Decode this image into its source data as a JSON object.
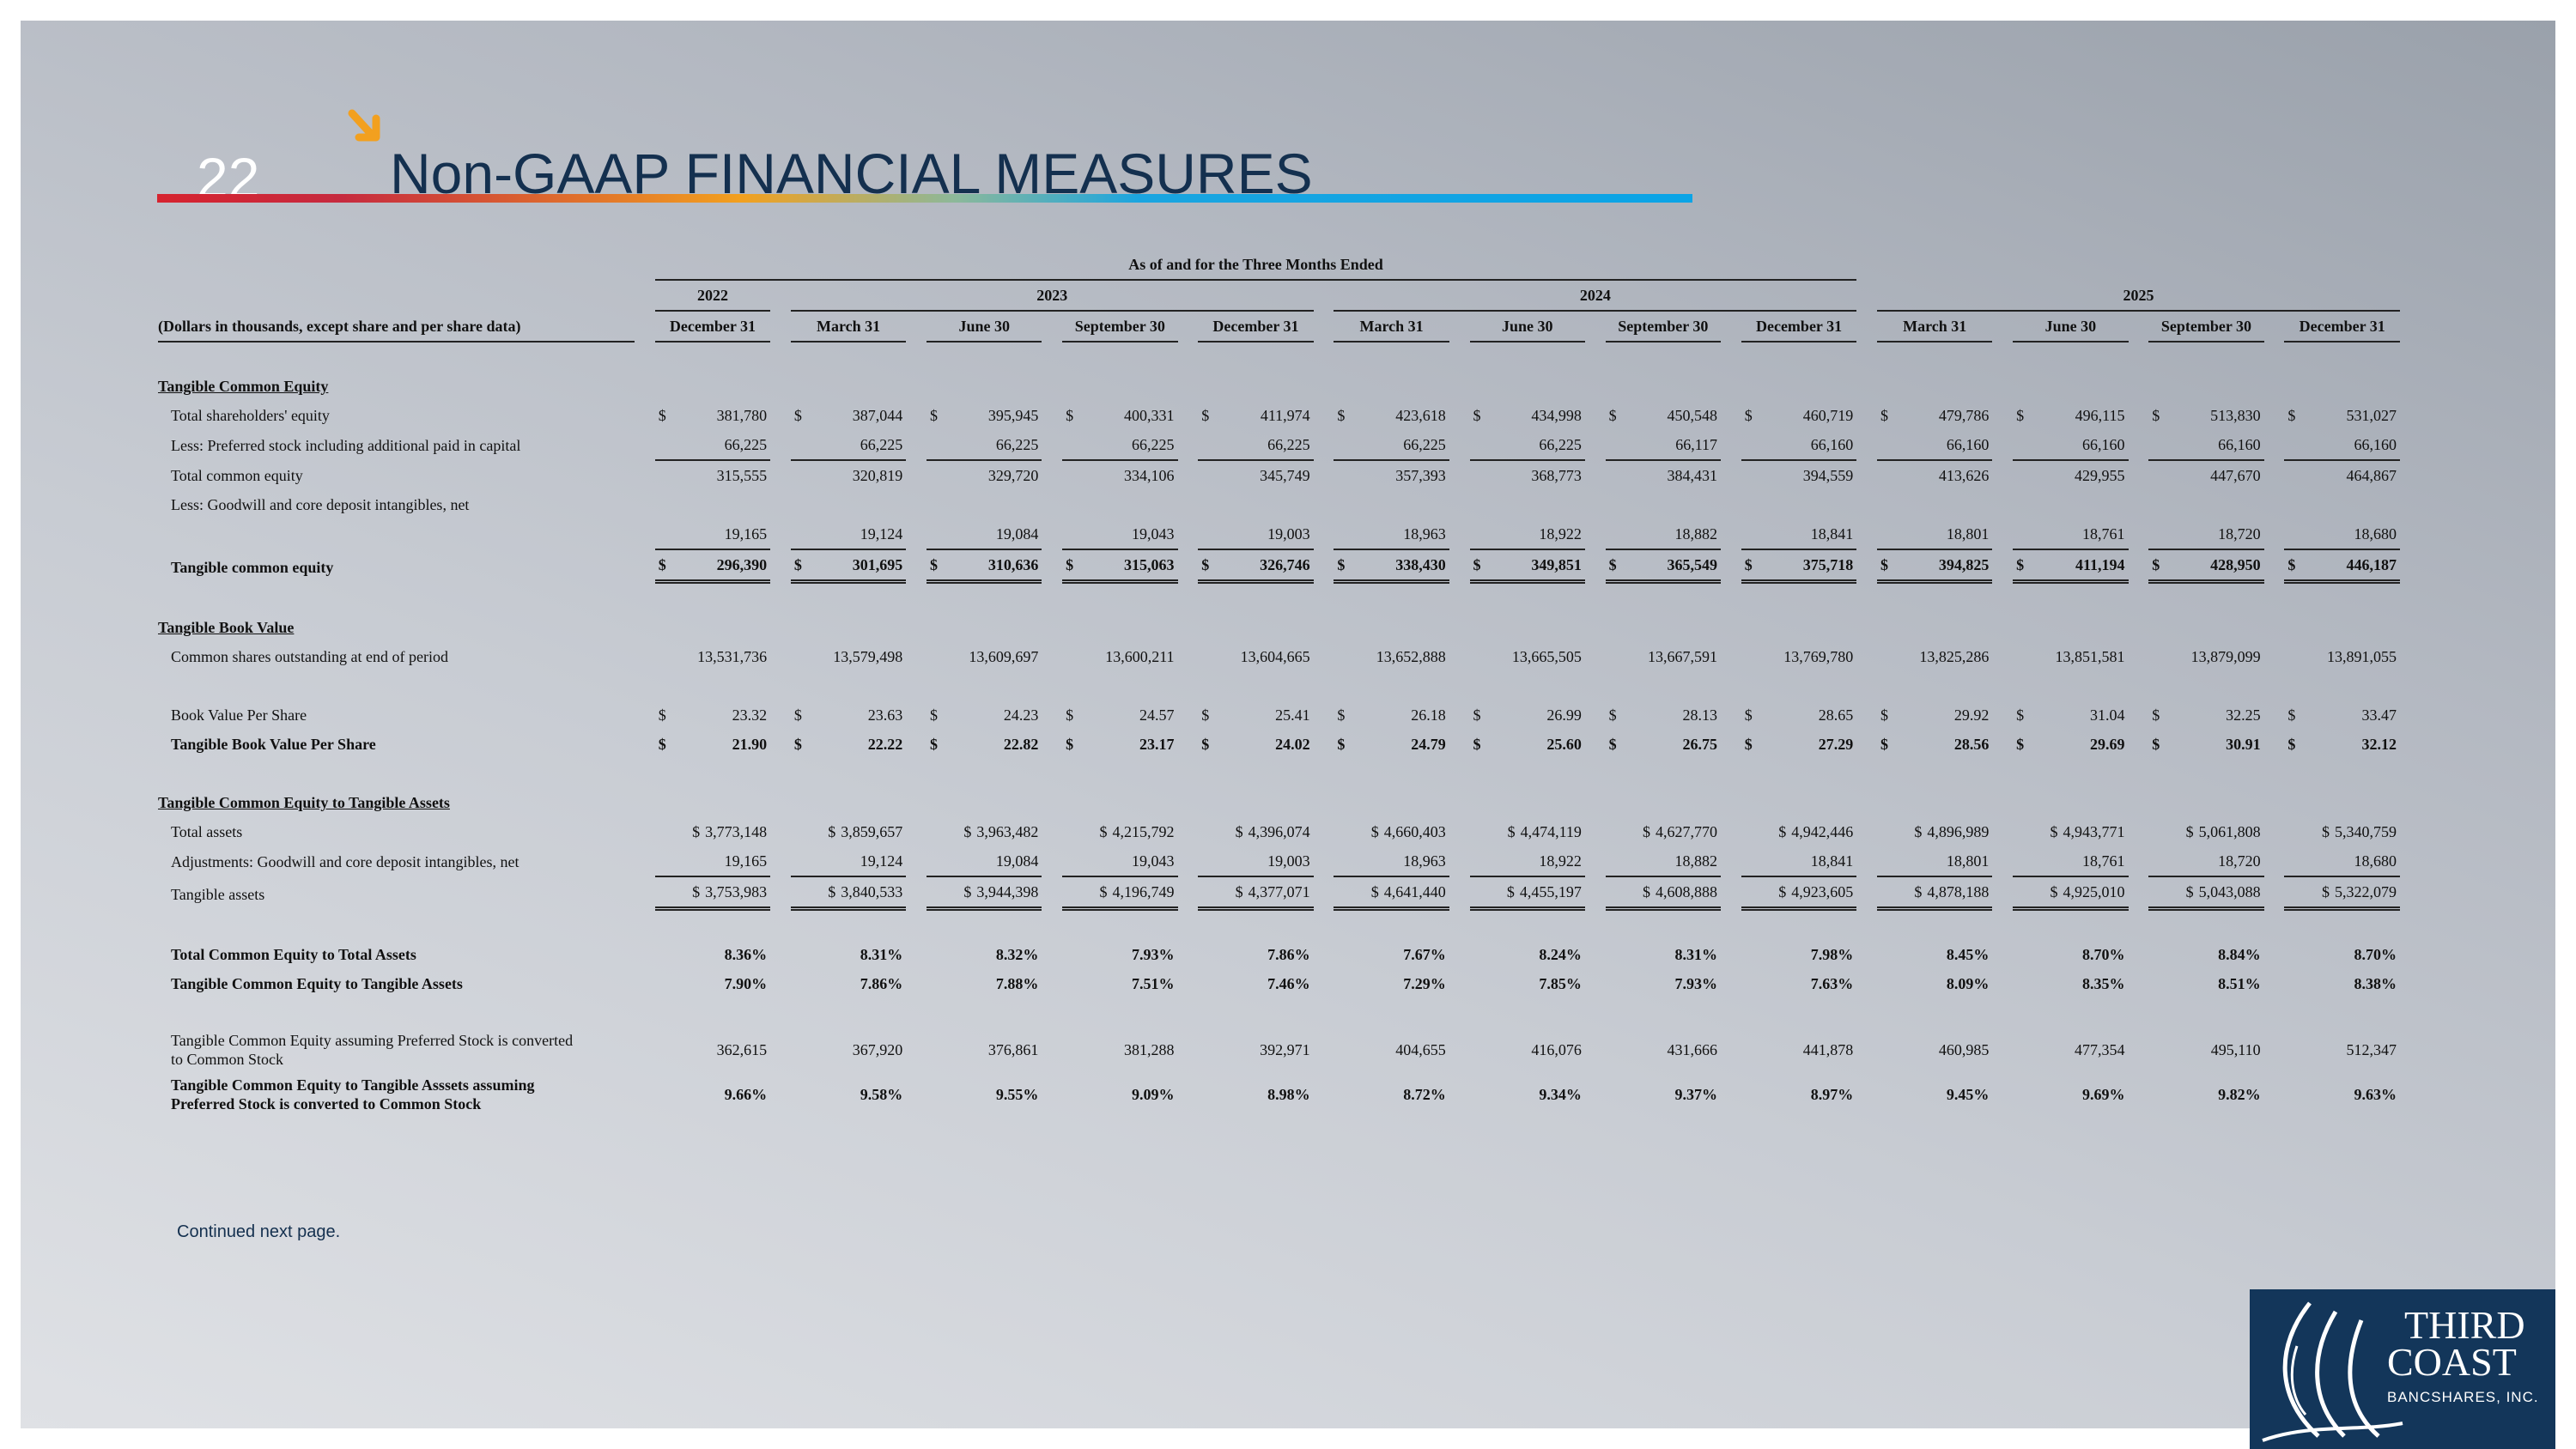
{
  "page_number": "22",
  "title": "Non-GAAP FINANCIAL MEASURES",
  "colors": {
    "title": "#14304f",
    "accent_arrow": "#f2a01f",
    "logo_bg": "#13365a"
  },
  "icons": {
    "arrow": "arrow-down-right-icon",
    "logo": "sailboat-logo-icon"
  },
  "table": {
    "super_header": "As of and for the Three Months Ended",
    "label_header": "(Dollars in thousands, except share and per share data)",
    "year_groups": [
      {
        "year": "2022",
        "span": 1
      },
      {
        "year": "2023",
        "span": 4
      },
      {
        "year": "2024",
        "span": 4
      },
      {
        "year": "2025",
        "span": 4
      }
    ],
    "periods": [
      "December 31",
      "March 31",
      "June 30",
      "September 30",
      "December 31",
      "March 31",
      "June 30",
      "September 30",
      "December 31",
      "March 31",
      "June 30",
      "September 30",
      "December 31"
    ],
    "rows": [
      {
        "type": "gap"
      },
      {
        "type": "section",
        "label": "Tangible Common Equity"
      },
      {
        "type": "row",
        "label": "Total shareholders' equity",
        "dollar": true,
        "values": [
          "381,780",
          "387,044",
          "395,945",
          "400,331",
          "411,974",
          "423,618",
          "434,998",
          "450,548",
          "460,719",
          "479,786",
          "496,115",
          "513,830",
          "531,027"
        ]
      },
      {
        "type": "row",
        "label": "Less:  Preferred stock including additional paid in capital",
        "underline": "single",
        "values": [
          "66,225",
          "66,225",
          "66,225",
          "66,225",
          "66,225",
          "66,225",
          "66,225",
          "66,117",
          "66,160",
          "66,160",
          "66,160",
          "66,160",
          "66,160"
        ]
      },
      {
        "type": "row",
        "label": "Total common equity",
        "values": [
          "315,555",
          "320,819",
          "329,720",
          "334,106",
          "345,749",
          "357,393",
          "368,773",
          "384,431",
          "394,559",
          "413,626",
          "429,955",
          "447,670",
          "464,867"
        ]
      },
      {
        "type": "label",
        "label": "Less:  Goodwill and core deposit intangibles, net"
      },
      {
        "type": "row",
        "label": "",
        "underline": "single",
        "values": [
          "19,165",
          "19,124",
          "19,084",
          "19,043",
          "19,003",
          "18,963",
          "18,922",
          "18,882",
          "18,841",
          "18,801",
          "18,761",
          "18,720",
          "18,680"
        ]
      },
      {
        "type": "row",
        "label": "Tangible common equity",
        "bold": true,
        "dollar": true,
        "underline": "double",
        "values": [
          "296,390",
          "301,695",
          "310,636",
          "315,063",
          "326,746",
          "338,430",
          "349,851",
          "365,549",
          "375,718",
          "394,825",
          "411,194",
          "428,950",
          "446,187"
        ]
      },
      {
        "type": "gap"
      },
      {
        "type": "section",
        "label": "Tangible Book Value"
      },
      {
        "type": "row",
        "label": "Common shares outstanding at end of period",
        "values": [
          "13,531,736",
          "13,579,498",
          "13,609,697",
          "13,600,211",
          "13,604,665",
          "13,652,888",
          "13,665,505",
          "13,667,591",
          "13,769,780",
          "13,825,286",
          "13,851,581",
          "13,879,099",
          "13,891,055"
        ]
      },
      {
        "type": "gap"
      },
      {
        "type": "row",
        "label": "Book Value Per Share",
        "dollar": true,
        "values": [
          "23.32",
          "23.63",
          "24.23",
          "24.57",
          "25.41",
          "26.18",
          "26.99",
          "28.13",
          "28.65",
          "29.92",
          "31.04",
          "32.25",
          "33.47"
        ]
      },
      {
        "type": "row",
        "label": "Tangible Book Value Per Share",
        "bold": true,
        "dollar": true,
        "values": [
          "21.90",
          "22.22",
          "22.82",
          "23.17",
          "24.02",
          "24.79",
          "25.60",
          "26.75",
          "27.29",
          "28.56",
          "29.69",
          "30.91",
          "32.12"
        ]
      },
      {
        "type": "gap"
      },
      {
        "type": "section",
        "label": "Tangible Common Equity to Tangible Assets"
      },
      {
        "type": "row",
        "label": "Total assets",
        "dollar_tight": true,
        "values": [
          "3,773,148",
          "3,859,657",
          "3,963,482",
          "4,215,792",
          "4,396,074",
          "4,660,403",
          "4,474,119",
          "4,627,770",
          "4,942,446",
          "4,896,989",
          "4,943,771",
          "5,061,808",
          "5,340,759"
        ]
      },
      {
        "type": "row",
        "label": "Adjustments:  Goodwill and core deposit intangibles, net",
        "underline": "single",
        "values": [
          "19,165",
          "19,124",
          "19,084",
          "19,043",
          "19,003",
          "18,963",
          "18,922",
          "18,882",
          "18,841",
          "18,801",
          "18,761",
          "18,720",
          "18,680"
        ]
      },
      {
        "type": "row",
        "label": "Tangible assets",
        "dollar_tight": true,
        "underline": "double",
        "values": [
          "3,753,983",
          "3,840,533",
          "3,944,398",
          "4,196,749",
          "4,377,071",
          "4,641,440",
          "4,455,197",
          "4,608,888",
          "4,923,605",
          "4,878,188",
          "4,925,010",
          "5,043,088",
          "5,322,079"
        ]
      },
      {
        "type": "gap"
      },
      {
        "type": "row",
        "label": "Total Common Equity to Total Assets",
        "bold": true,
        "values": [
          "8.36%",
          "8.31%",
          "8.32%",
          "7.93%",
          "7.86%",
          "7.67%",
          "8.24%",
          "8.31%",
          "7.98%",
          "8.45%",
          "8.70%",
          "8.84%",
          "8.70%"
        ]
      },
      {
        "type": "row",
        "label": "Tangible Common Equity to Tangible Assets",
        "bold": true,
        "values": [
          "7.90%",
          "7.86%",
          "7.88%",
          "7.51%",
          "7.46%",
          "7.29%",
          "7.85%",
          "7.93%",
          "7.63%",
          "8.09%",
          "8.35%",
          "8.51%",
          "8.38%"
        ]
      },
      {
        "type": "gap"
      },
      {
        "type": "row2",
        "label1": "Tangible Common Equity assuming Preferred Stock is converted",
        "label2": "to Common Stock",
        "values": [
          "362,615",
          "367,920",
          "376,861",
          "381,288",
          "392,971",
          "404,655",
          "416,076",
          "431,666",
          "441,878",
          "460,985",
          "477,354",
          "495,110",
          "512,347"
        ]
      },
      {
        "type": "row2",
        "label1": "Tangible Common Equity to Tangible Asssets assuming",
        "label2": "Preferred Stock is converted to Common Stock",
        "bold": true,
        "values": [
          "9.66%",
          "9.58%",
          "9.55%",
          "9.09%",
          "8.98%",
          "8.72%",
          "9.34%",
          "9.37%",
          "8.97%",
          "9.45%",
          "9.69%",
          "9.82%",
          "9.63%"
        ]
      }
    ]
  },
  "footer_note": "Continued next page.",
  "logo": {
    "line1": "THIRD",
    "line2": "COAST",
    "line3": "BANCSHARES, INC."
  }
}
